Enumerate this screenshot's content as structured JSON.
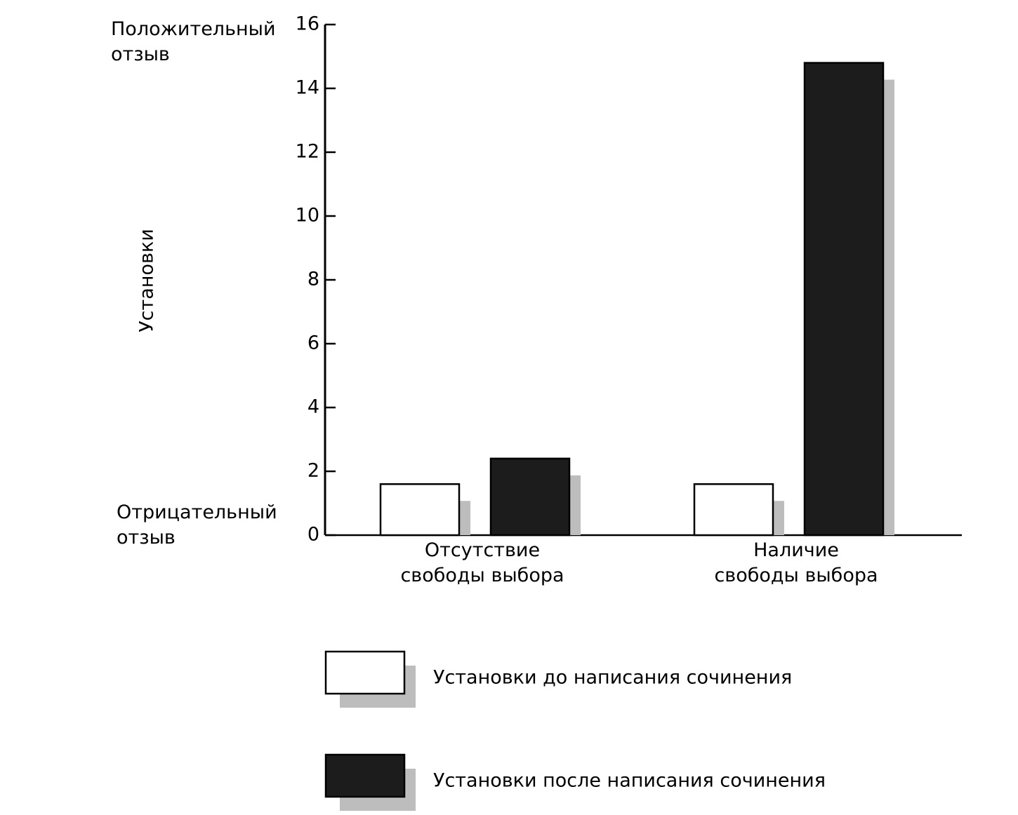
{
  "chart_data": {
    "type": "bar",
    "y_label": "Установки",
    "annotations": [
      "Положительный отзыв",
      "Отрицательный отзыв"
    ],
    "categories": [
      "Отсутствие свободы выбора",
      "Наличие свободы выбора"
    ],
    "series": [
      {
        "name": "Установки до написания сочинения",
        "color": "#ffffff",
        "values": [
          1.6,
          1.6
        ]
      },
      {
        "name": "Установки после написания сочинения",
        "color": "#1c1c1c",
        "values": [
          2.4,
          14.8
        ]
      }
    ],
    "ylim": [
      0,
      16
    ],
    "yticks": [
      0,
      2,
      4,
      6,
      8,
      10,
      12,
      14,
      16
    ]
  }
}
